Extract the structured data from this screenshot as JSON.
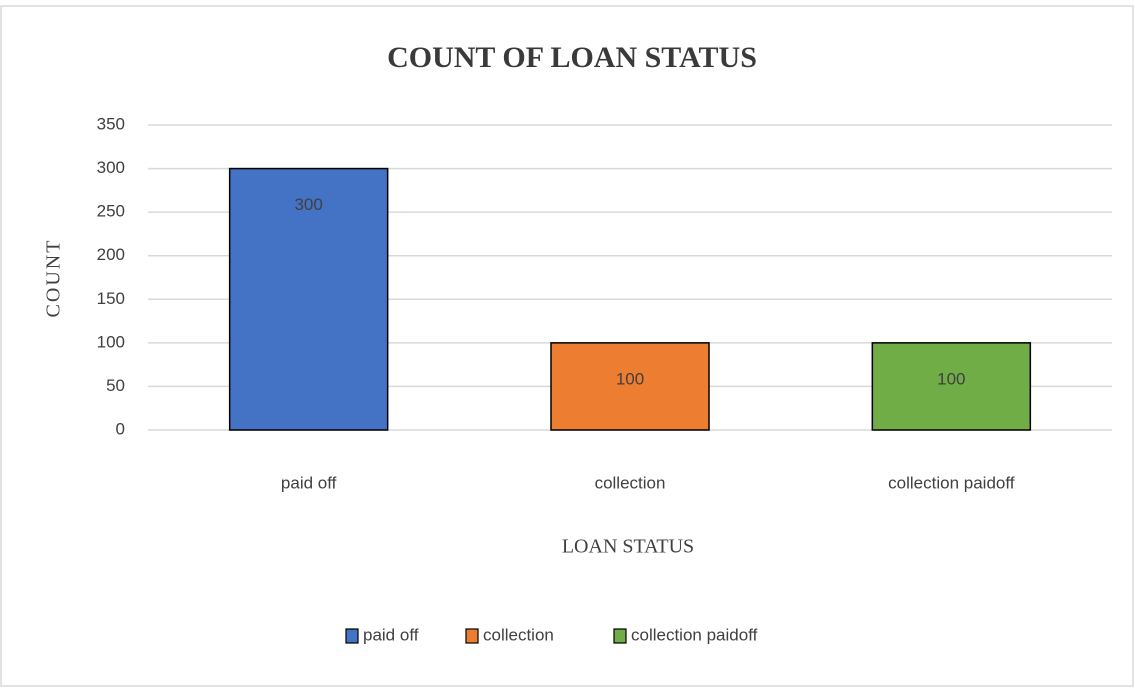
{
  "chart_data": {
    "type": "bar",
    "title": "COUNT OF LOAN STATUS",
    "x_label": "LOAN STATUS",
    "y_label": "COUNT",
    "categories": [
      "paid off",
      "collection",
      "collection paidoff"
    ],
    "values": [
      300,
      100,
      100
    ],
    "colors": [
      "#4472c4",
      "#ed7d31",
      "#70ad47"
    ],
    "ylim": [
      0,
      350
    ],
    "yticks": [
      0,
      50,
      100,
      150,
      200,
      250,
      300,
      350
    ],
    "grid": true,
    "legend": "bottom"
  }
}
